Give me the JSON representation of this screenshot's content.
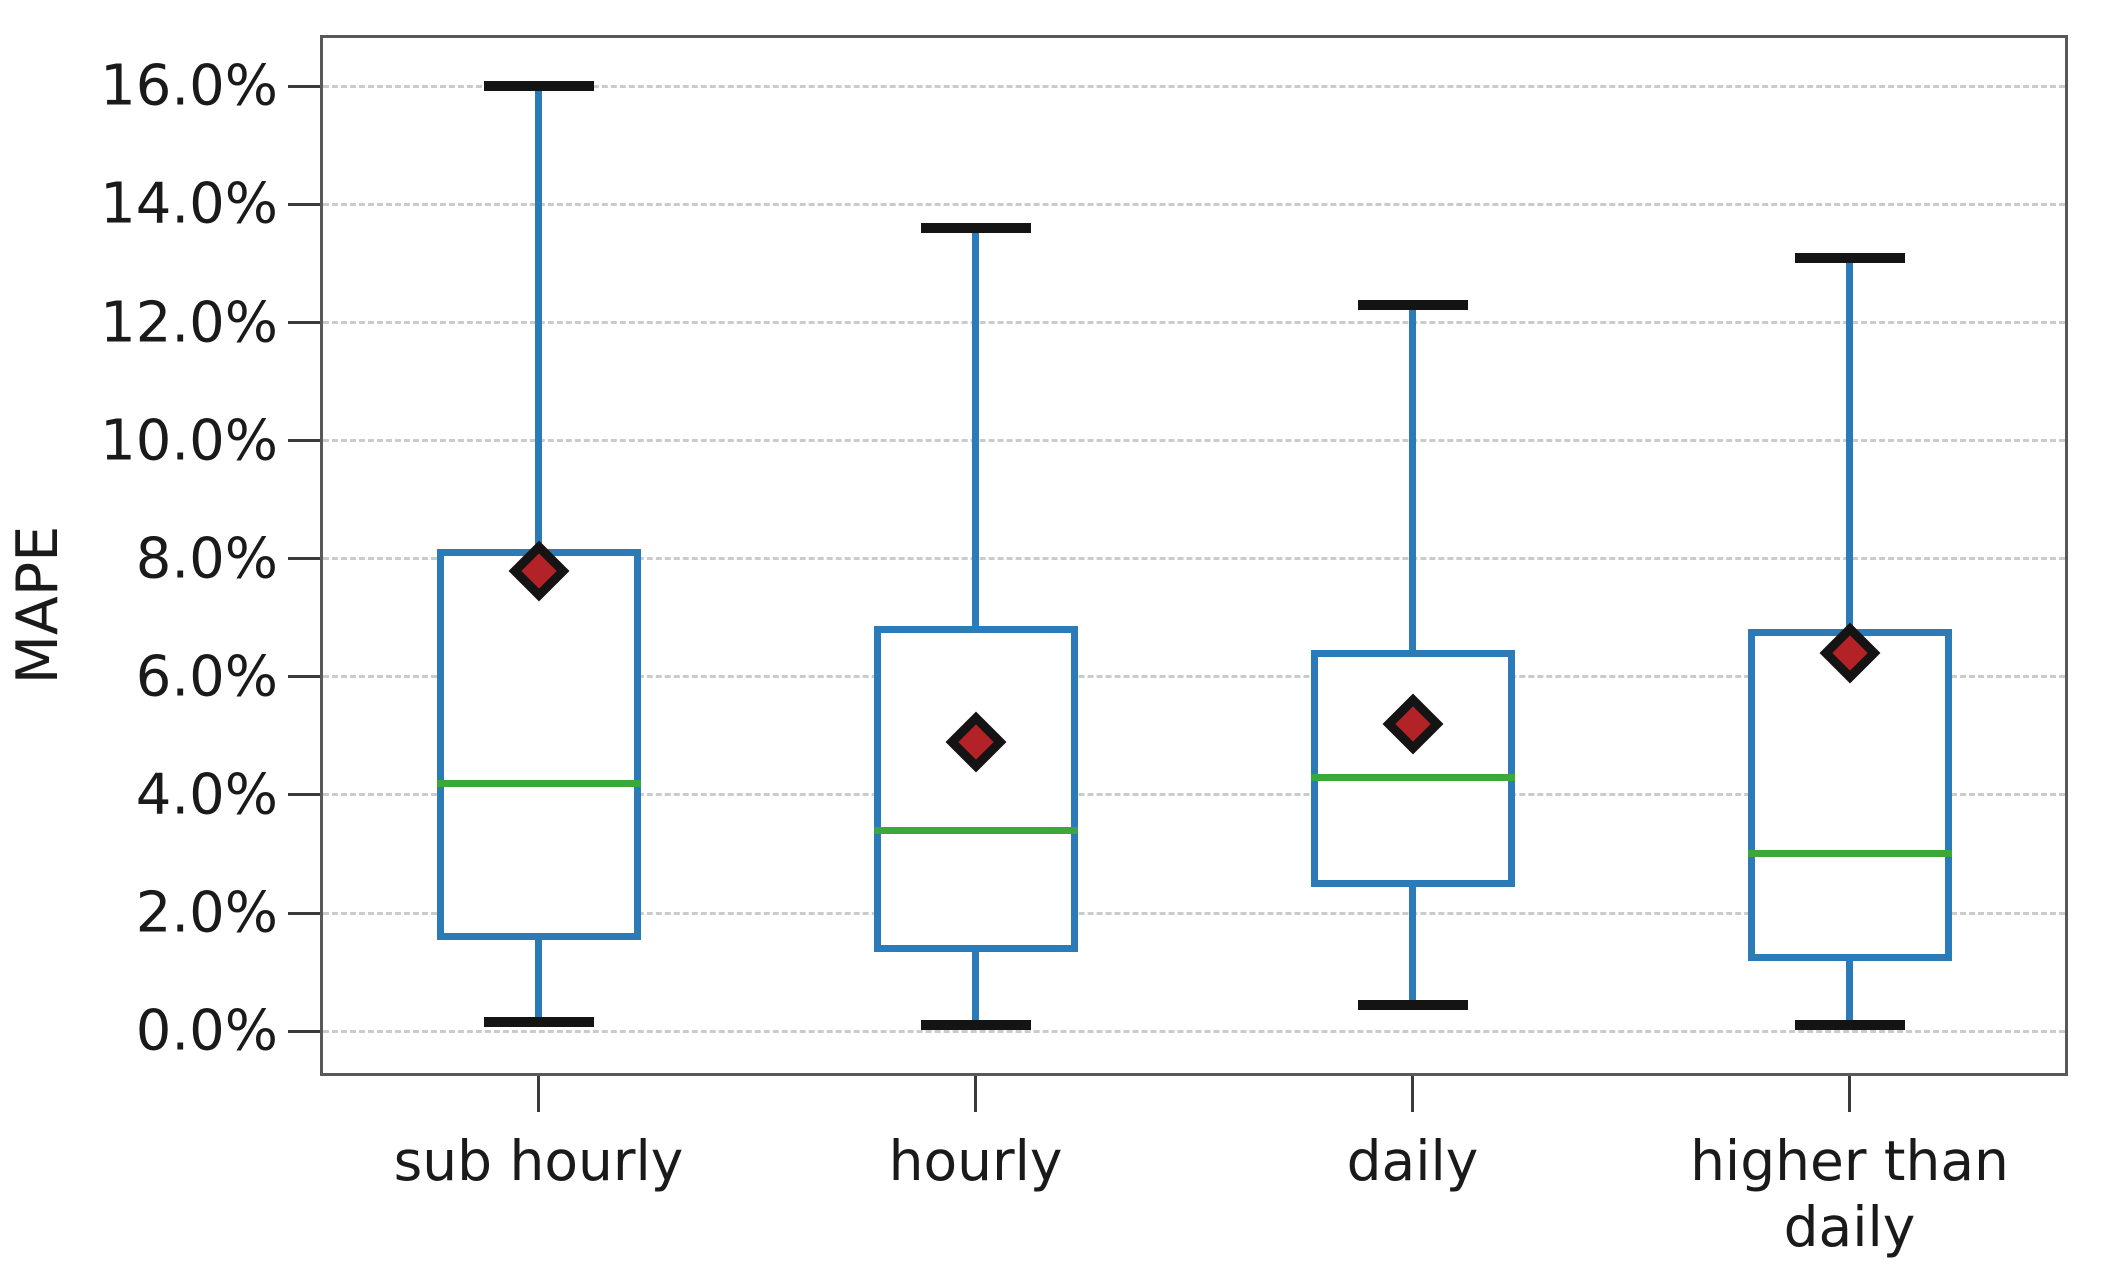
{
  "chart_data": {
    "type": "box",
    "title": "",
    "xlabel": "",
    "ylabel": "MAPE",
    "categories": [
      "sub hourly",
      "hourly",
      "daily",
      "higher than daily"
    ],
    "category_labels": [
      "sub hourly",
      "hourly",
      "daily",
      "higher than\ndaily"
    ],
    "series": [
      {
        "name": "sub hourly",
        "whisker_low": 0.15,
        "q1": 1.6,
        "median": 4.2,
        "q3": 8.1,
        "whisker_high": 16.0,
        "mean": 7.8
      },
      {
        "name": "hourly",
        "whisker_low": 0.1,
        "q1": 1.4,
        "median": 3.4,
        "q3": 6.8,
        "whisker_high": 13.6,
        "mean": 4.9
      },
      {
        "name": "daily",
        "whisker_low": 0.45,
        "q1": 2.5,
        "median": 4.3,
        "q3": 6.4,
        "whisker_high": 12.3,
        "mean": 5.2
      },
      {
        "name": "higher than daily",
        "whisker_low": 0.1,
        "q1": 1.25,
        "median": 3.0,
        "q3": 6.75,
        "whisker_high": 13.1,
        "mean": 6.4
      }
    ],
    "y_tick_labels": [
      "16.0%",
      "14.0%",
      "12.0%",
      "10.0%",
      "8.0%",
      "6.0%",
      "4.0%",
      "2.0%",
      "0.0%"
    ],
    "y_tick_values": [
      16,
      14,
      12,
      10,
      8,
      6,
      4,
      2,
      0
    ],
    "ylim": [
      -0.76,
      16.87
    ],
    "grid": "horizontal-dashed",
    "legend": "none",
    "colors": {
      "box": "#2b7bb9",
      "whisker": "#2b7bb9",
      "cap": "#141414",
      "median": "#3aa83a",
      "mean_fill": "#b22226",
      "mean_edge": "#141414",
      "axis_border": "#58585a",
      "grid": "#cbcbcb",
      "text": "#1a1a1a"
    }
  }
}
